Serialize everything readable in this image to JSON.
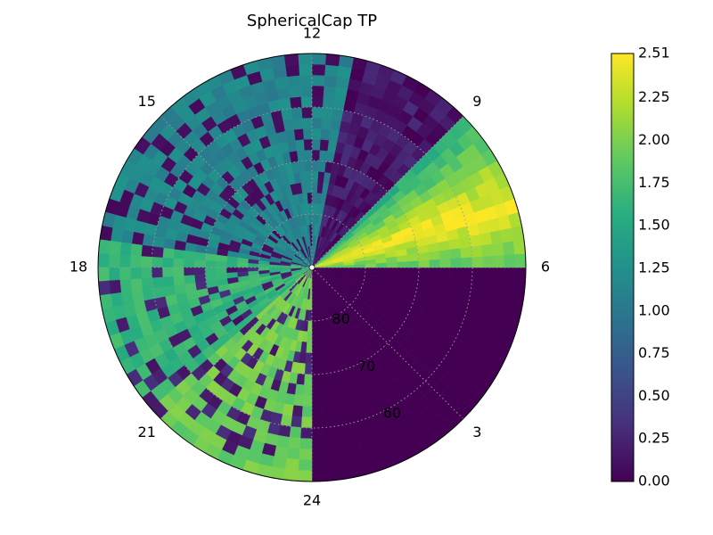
{
  "chart_data": {
    "type": "heatmap",
    "projection": "polar",
    "title": "SphericalCap TP",
    "colormap": "viridis",
    "value_range": [
      0.0,
      2.51
    ],
    "angular_axis": {
      "quantity": "MLT",
      "tick_labels": [
        "12",
        "9",
        "6",
        "3",
        "24",
        "21",
        "18",
        "15"
      ],
      "ticks": [
        12,
        9,
        6,
        3,
        24,
        21,
        18,
        15
      ]
    },
    "radial_axis": {
      "quantity": "latitude",
      "range": [
        50,
        90
      ],
      "tick_labels": [
        "80",
        "70",
        "60"
      ],
      "ticks": [
        80,
        70,
        60
      ]
    },
    "colorbar": {
      "tick_labels": [
        "2.51",
        "2.25",
        "2.00",
        "1.75",
        "1.50",
        "1.25",
        "1.00",
        "0.75",
        "0.50",
        "0.25",
        "0.00"
      ],
      "ticks": [
        2.51,
        2.25,
        2.0,
        1.75,
        1.5,
        1.25,
        1.0,
        0.75,
        0.5,
        0.25,
        0.0
      ]
    },
    "grid": true,
    "regions": [
      {
        "mlt_range": [
          0,
          6
        ],
        "value_approx": 0.0
      },
      {
        "mlt_range": [
          6,
          9
        ],
        "value_approx": 2.1
      },
      {
        "mlt_range": [
          9,
          11.3
        ],
        "value_approx": 0.15
      },
      {
        "mlt_range": [
          11.3,
          17.5
        ],
        "value_approx": 1.1
      },
      {
        "mlt_range": [
          17.5,
          20.8
        ],
        "value_approx": 1.6
      },
      {
        "mlt_range": [
          20.8,
          24
        ],
        "value_approx": 1.9
      }
    ]
  }
}
